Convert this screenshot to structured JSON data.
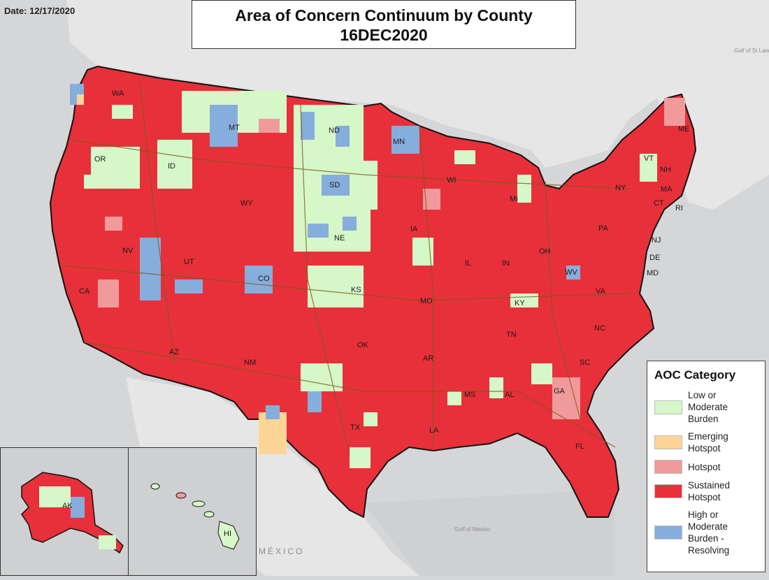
{
  "date": "Date: 12/17/2020",
  "title": [
    "Area of Concern Continuum by County",
    "16DEC2020"
  ],
  "legend": {
    "title": "AOC Category",
    "items": [
      {
        "label": "Low or\nModerate\nBurden",
        "color": "#d6f7c8"
      },
      {
        "label": "Emerging\nHotspot",
        "color": "#fdd597"
      },
      {
        "label": "Hotspot",
        "color": "#f19a9b"
      },
      {
        "label": "Sustained\nHotspot",
        "color": "#e8303a"
      },
      {
        "label": "High or\nModerate\nBurden -\nResolving",
        "color": "#86aedc"
      }
    ]
  },
  "states": [
    "WA",
    "OR",
    "CA",
    "ID",
    "NV",
    "MT",
    "WY",
    "UT",
    "AZ",
    "CO",
    "NM",
    "ND",
    "SD",
    "NE",
    "KS",
    "OK",
    "TX",
    "MN",
    "IA",
    "MO",
    "AR",
    "LA",
    "WI",
    "IL",
    "MI",
    "IN",
    "OH",
    "KY",
    "TN",
    "MS",
    "AL",
    "GA",
    "FL",
    "SC",
    "NC",
    "VA",
    "WV",
    "PA",
    "NY",
    "ME",
    "VT",
    "NH",
    "MA",
    "CT",
    "RI",
    "NJ",
    "DE",
    "MD",
    "AK",
    "HI"
  ],
  "geo_labels": [
    "MÉXICO",
    "Gulf of Mexico",
    "Gulf of St Lawrence"
  ],
  "colors": {
    "background": "#d5d6d8",
    "us_base": "#e8303a",
    "border": "#111111",
    "roads": "#7a5a18"
  }
}
